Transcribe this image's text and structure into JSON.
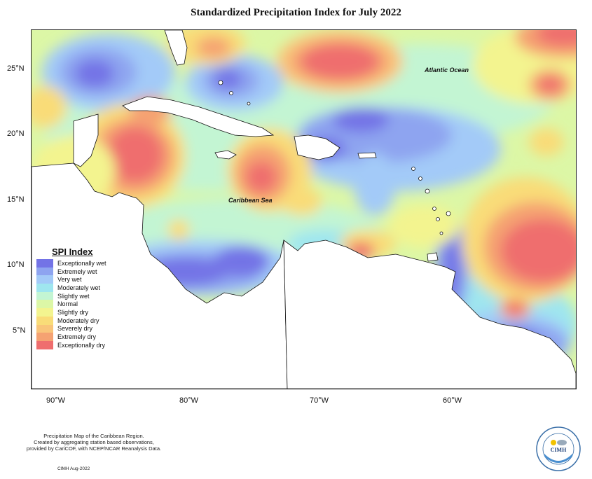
{
  "title": "Standardized Precipitation Index for July 2022",
  "y_ticks": [
    "25°N",
    "20°N",
    "15°N",
    "10°N",
    "5°N"
  ],
  "x_ticks": [
    "90°W",
    "80°W",
    "70°W",
    "60°W"
  ],
  "labels": {
    "ocean": "Atlantic Ocean",
    "sea": "Caribbean Sea"
  },
  "legend": {
    "title": "SPI Index",
    "items": [
      {
        "label": "Exceptionally wet",
        "color": "#7373e6"
      },
      {
        "label": "Extremely wet",
        "color": "#8ea4f0"
      },
      {
        "label": "Very wet",
        "color": "#a3caf8"
      },
      {
        "label": "Moderately wet",
        "color": "#9fe6ef"
      },
      {
        "label": "Slightly wet",
        "color": "#c3f5d3"
      },
      {
        "label": "Normal",
        "color": "#dcf7a6"
      },
      {
        "label": "Slightly dry",
        "color": "#f3f48f"
      },
      {
        "label": "Moderately dry",
        "color": "#f9dc78"
      },
      {
        "label": "Severely dry",
        "color": "#f9c57a"
      },
      {
        "label": "Extremely dry",
        "color": "#f5a272"
      },
      {
        "label": "Exceptionally dry",
        "color": "#ef6e6e"
      }
    ]
  },
  "note": [
    "Precipitation Map of the Caribbean Region.",
    "Created by aggregating station based observations,",
    "provided by CariCOF, with NCEP/NCAR Reanalysis Data."
  ],
  "footer": "CIMH Aug-2022",
  "logo": {
    "text": "CIMH"
  }
}
